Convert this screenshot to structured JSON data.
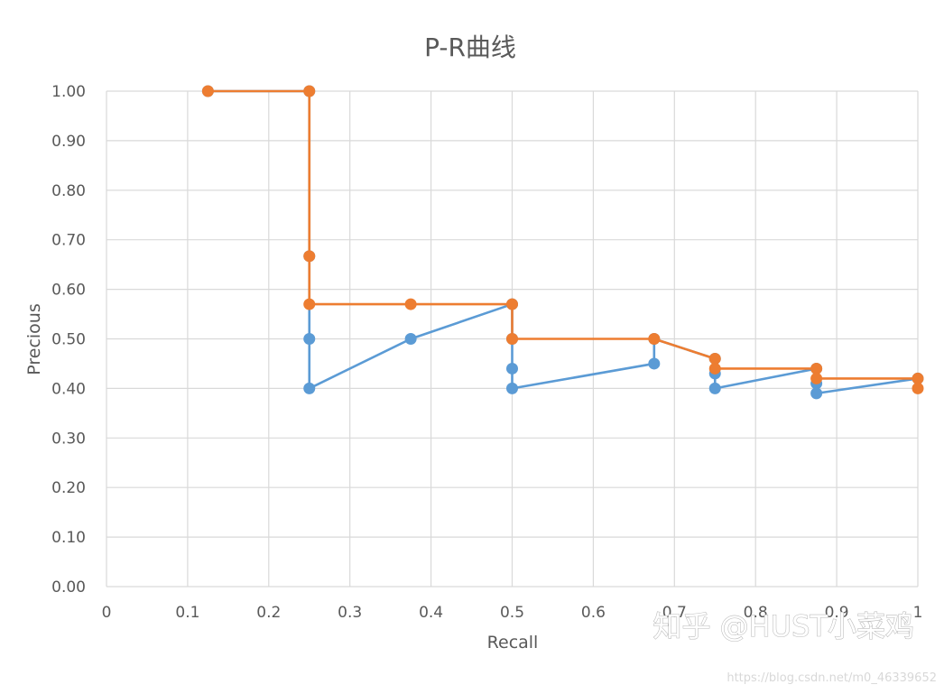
{
  "chart_data": {
    "type": "line",
    "title": "P-R曲线",
    "xlabel": "Recall",
    "ylabel": "Precious",
    "xlim": [
      0,
      1
    ],
    "ylim": [
      0,
      1
    ],
    "x_ticks": [
      "0",
      "0.1",
      "0.2",
      "0.3",
      "0.4",
      "0.5",
      "0.6",
      "0.7",
      "0.8",
      "0.9",
      "1"
    ],
    "y_ticks": [
      "0.00",
      "0.10",
      "0.20",
      "0.30",
      "0.40",
      "0.50",
      "0.60",
      "0.70",
      "0.80",
      "0.90",
      "1.00"
    ],
    "grid": true,
    "series": [
      {
        "color": "#5b9bd5",
        "points": [
          [
            0.125,
            1.0
          ],
          [
            0.25,
            1.0
          ],
          [
            0.25,
            0.667
          ],
          [
            0.25,
            0.5
          ],
          [
            0.25,
            0.4
          ],
          [
            0.375,
            0.5
          ],
          [
            0.5,
            0.57
          ],
          [
            0.5,
            0.5
          ],
          [
            0.5,
            0.44
          ],
          [
            0.5,
            0.4
          ],
          [
            0.675,
            0.45
          ],
          [
            0.675,
            0.5
          ],
          [
            0.75,
            0.46
          ],
          [
            0.75,
            0.43
          ],
          [
            0.75,
            0.4
          ],
          [
            0.875,
            0.44
          ],
          [
            0.875,
            0.41
          ],
          [
            0.875,
            0.39
          ],
          [
            1.0,
            0.42
          ]
        ]
      },
      {
        "color": "#ed7d31",
        "points": [
          [
            0.125,
            1.0
          ],
          [
            0.25,
            1.0
          ],
          [
            0.25,
            0.667
          ],
          [
            0.25,
            0.57
          ],
          [
            0.375,
            0.57
          ],
          [
            0.5,
            0.57
          ],
          [
            0.5,
            0.5
          ],
          [
            0.675,
            0.5
          ],
          [
            0.75,
            0.46
          ],
          [
            0.75,
            0.44
          ],
          [
            0.875,
            0.44
          ],
          [
            0.875,
            0.42
          ],
          [
            1.0,
            0.42
          ],
          [
            1.0,
            0.4
          ]
        ]
      }
    ]
  },
  "watermark": {
    "text": "知乎 @HUST小菜鸡",
    "url": "https://blog.csdn.net/m0_46339652"
  }
}
